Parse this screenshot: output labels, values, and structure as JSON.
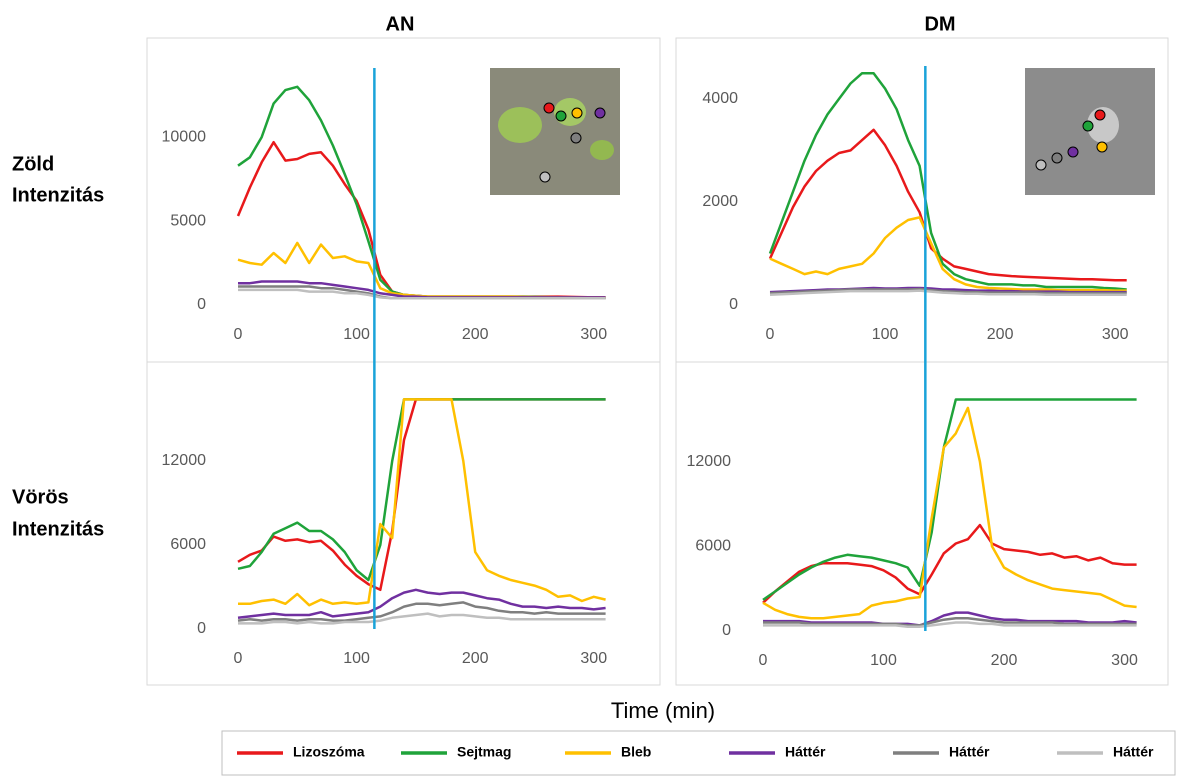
{
  "column_titles": [
    "AN",
    "DM"
  ],
  "row_labels": [
    [
      "Zöld",
      "Intenzitás"
    ],
    [
      "Vörös",
      "Intenzitás"
    ]
  ],
  "x_label": "Time (min)",
  "chart_data": [
    {
      "type": "line",
      "xlim": [
        0,
        312
      ],
      "ylim": [
        0,
        14000
      ],
      "xticks": [
        0,
        100,
        200,
        300
      ],
      "yticks": [
        0,
        5000,
        10000
      ],
      "vline": 115,
      "vline_color": "#1aa3d9",
      "x": [
        0,
        10,
        20,
        30,
        40,
        50,
        60,
        70,
        80,
        90,
        100,
        110,
        120,
        130,
        140,
        150,
        160,
        170,
        180,
        190,
        200,
        210,
        220,
        230,
        240,
        250,
        260,
        270,
        280,
        290,
        300,
        310
      ],
      "series": [
        {
          "name": "Lizoszóma",
          "color": "#e8191b",
          "values": [
            5300,
            7000,
            8500,
            9700,
            8600,
            8700,
            9000,
            9100,
            8300,
            7200,
            6200,
            4500,
            1800,
            800,
            600,
            550,
            500,
            500,
            500,
            500,
            500,
            500,
            500,
            500,
            500,
            500,
            500,
            500,
            480,
            470,
            450,
            450
          ]
        },
        {
          "name": "Sejtmag",
          "color": "#1fa33a",
          "values": [
            8300,
            8800,
            10000,
            12000,
            12800,
            13000,
            12200,
            11000,
            9500,
            7800,
            6000,
            3800,
            1500,
            800,
            600,
            550,
            500,
            500,
            500,
            500,
            500,
            500,
            500,
            500,
            500,
            480,
            470,
            450,
            450,
            430,
            420,
            400
          ]
        },
        {
          "name": "Bleb",
          "color": "#ffc000",
          "values": [
            2700,
            2500,
            2400,
            3100,
            2500,
            3700,
            2500,
            3600,
            2800,
            2900,
            2600,
            2500,
            1000,
            700,
            600,
            550,
            500,
            500,
            500,
            500,
            500,
            500,
            500,
            500,
            480,
            470,
            470,
            460,
            460,
            450,
            450,
            450
          ]
        },
        {
          "name": "Háttér",
          "color": "#7030a0",
          "values": [
            1300,
            1300,
            1400,
            1400,
            1400,
            1400,
            1300,
            1300,
            1200,
            1100,
            1000,
            900,
            700,
            600,
            500,
            500,
            450,
            450,
            450,
            450,
            450,
            450,
            450,
            450,
            450,
            450,
            450,
            450,
            450,
            450,
            450,
            450
          ]
        },
        {
          "name": "Háttér",
          "color": "#7f7f7f",
          "values": [
            1100,
            1100,
            1100,
            1100,
            1100,
            1100,
            1100,
            1000,
            1000,
            900,
            800,
            700,
            500,
            400,
            400,
            400,
            400,
            400,
            400,
            400,
            400,
            400,
            400,
            400,
            400,
            400,
            400,
            400,
            400,
            400,
            400,
            400
          ]
        },
        {
          "name": "Háttér",
          "color": "#bfbfbf",
          "values": [
            900,
            900,
            900,
            900,
            900,
            900,
            800,
            800,
            800,
            700,
            700,
            600,
            450,
            400,
            400,
            400,
            400,
            400,
            400,
            400,
            400,
            400,
            400,
            400,
            400,
            400,
            400,
            400,
            400,
            400,
            400,
            400
          ]
        }
      ]
    },
    {
      "type": "line",
      "xlim": [
        0,
        312
      ],
      "ylim": [
        0,
        4600
      ],
      "xticks": [
        0,
        100,
        200,
        300
      ],
      "yticks": [
        0,
        2000,
        4000
      ],
      "vline": 135,
      "vline_color": "#1aa3d9",
      "x": [
        0,
        10,
        20,
        30,
        40,
        50,
        60,
        70,
        80,
        90,
        100,
        110,
        120,
        130,
        140,
        150,
        160,
        170,
        180,
        190,
        200,
        210,
        220,
        230,
        240,
        250,
        260,
        270,
        280,
        290,
        300,
        310
      ],
      "series": [
        {
          "name": "Lizoszóma",
          "color": "#e8191b",
          "values": [
            900,
            1400,
            1900,
            2300,
            2600,
            2800,
            2950,
            3000,
            3200,
            3400,
            3100,
            2700,
            2200,
            1800,
            1100,
            900,
            750,
            700,
            650,
            600,
            580,
            560,
            550,
            540,
            530,
            520,
            510,
            500,
            500,
            490,
            480,
            480
          ]
        },
        {
          "name": "Sejtmag",
          "color": "#1fa33a",
          "values": [
            1000,
            1600,
            2200,
            2800,
            3300,
            3700,
            4000,
            4300,
            4500,
            4500,
            4200,
            3800,
            3200,
            2700,
            1400,
            800,
            600,
            500,
            450,
            400,
            400,
            400,
            380,
            380,
            350,
            350,
            350,
            350,
            350,
            330,
            320,
            300
          ]
        },
        {
          "name": "Bleb",
          "color": "#ffc000",
          "values": [
            900,
            800,
            700,
            600,
            650,
            600,
            700,
            750,
            800,
            1000,
            1300,
            1500,
            1650,
            1700,
            1200,
            700,
            500,
            400,
            350,
            330,
            320,
            310,
            300,
            300,
            300,
            290,
            290,
            290,
            290,
            290,
            280,
            280
          ]
        },
        {
          "name": "Háttér",
          "color": "#7030a0",
          "values": [
            250,
            260,
            270,
            280,
            290,
            300,
            300,
            310,
            320,
            330,
            320,
            320,
            330,
            330,
            320,
            300,
            300,
            290,
            280,
            280,
            270,
            270,
            260,
            260,
            260,
            260,
            250,
            250,
            250,
            250,
            250,
            250
          ]
        },
        {
          "name": "Háttér",
          "color": "#7f7f7f",
          "values": [
            230,
            240,
            250,
            260,
            270,
            280,
            290,
            300,
            300,
            300,
            300,
            300,
            300,
            310,
            290,
            270,
            260,
            250,
            250,
            240,
            240,
            240,
            240,
            240,
            230,
            230,
            230,
            230,
            230,
            230,
            230,
            230
          ]
        },
        {
          "name": "Háttér",
          "color": "#bfbfbf",
          "values": [
            200,
            210,
            220,
            230,
            240,
            250,
            260,
            270,
            270,
            270,
            270,
            270,
            270,
            280,
            260,
            240,
            230,
            220,
            220,
            210,
            210,
            210,
            210,
            210,
            200,
            200,
            200,
            200,
            200,
            200,
            200,
            200
          ]
        }
      ]
    },
    {
      "type": "line",
      "xlim": [
        0,
        312
      ],
      "ylim": [
        0,
        17000
      ],
      "xticks": [
        0,
        100,
        200,
        300
      ],
      "yticks": [
        0,
        6000,
        12000
      ],
      "x": [
        0,
        10,
        20,
        30,
        40,
        50,
        60,
        70,
        80,
        90,
        100,
        110,
        120,
        130,
        140,
        150,
        160,
        170,
        180,
        190,
        200,
        210,
        220,
        230,
        240,
        250,
        260,
        270,
        280,
        290,
        300,
        310
      ],
      "series": [
        {
          "name": "Lizoszóma",
          "color": "#e8191b",
          "values": [
            4800,
            5300,
            5600,
            6600,
            6300,
            6400,
            6200,
            6300,
            5600,
            4600,
            3800,
            3200,
            2800,
            7000,
            13500,
            16400,
            16400,
            16400,
            16400,
            16400,
            16400,
            16400,
            16400,
            16400,
            16400,
            16400,
            16400,
            16400,
            16400,
            16400,
            16400,
            16400
          ]
        },
        {
          "name": "Sejtmag",
          "color": "#1fa33a",
          "values": [
            4300,
            4500,
            5500,
            6800,
            7200,
            7600,
            7000,
            7000,
            6400,
            5500,
            4200,
            3500,
            6000,
            12000,
            16400,
            16400,
            16400,
            16400,
            16400,
            16400,
            16400,
            16400,
            16400,
            16400,
            16400,
            16400,
            16400,
            16400,
            16400,
            16400,
            16400,
            16400
          ]
        },
        {
          "name": "Bleb",
          "color": "#ffc000",
          "values": [
            1800,
            1800,
            2000,
            2100,
            1800,
            2500,
            1700,
            2100,
            1800,
            1900,
            1800,
            1900,
            7500,
            6500,
            16400,
            16400,
            16400,
            16400,
            16400,
            12000,
            5500,
            4200,
            3800,
            3500,
            3300,
            3100,
            2800,
            2300,
            2400,
            2000,
            2300,
            2100
          ]
        },
        {
          "name": "Háttér",
          "color": "#7030a0",
          "values": [
            800,
            900,
            1000,
            1100,
            1000,
            1000,
            1000,
            1200,
            900,
            1000,
            1100,
            1200,
            1600,
            2200,
            2600,
            2800,
            2600,
            2500,
            2600,
            2600,
            2400,
            2200,
            2100,
            1800,
            1600,
            1600,
            1500,
            1600,
            1500,
            1500,
            1400,
            1500
          ]
        },
        {
          "name": "Háttér",
          "color": "#7f7f7f",
          "values": [
            600,
            700,
            600,
            700,
            700,
            600,
            700,
            700,
            600,
            600,
            700,
            800,
            900,
            1200,
            1600,
            1800,
            1800,
            1700,
            1800,
            1900,
            1600,
            1500,
            1300,
            1200,
            1200,
            1100,
            1200,
            1100,
            1100,
            1100,
            1100,
            1100
          ]
        },
        {
          "name": "Háttér",
          "color": "#bfbfbf",
          "values": [
            400,
            400,
            400,
            500,
            500,
            400,
            500,
            400,
            400,
            500,
            500,
            500,
            600,
            800,
            900,
            1000,
            1100,
            900,
            1000,
            1000,
            900,
            800,
            800,
            700,
            700,
            700,
            700,
            700,
            700,
            700,
            700,
            700
          ]
        }
      ]
    },
    {
      "type": "line",
      "xlim": [
        0,
        312
      ],
      "ylim": [
        0,
        17000
      ],
      "xticks": [
        0,
        100,
        200,
        300
      ],
      "yticks": [
        0,
        6000,
        12000
      ],
      "x": [
        0,
        10,
        20,
        30,
        40,
        50,
        60,
        70,
        80,
        90,
        100,
        110,
        120,
        130,
        140,
        150,
        160,
        170,
        180,
        190,
        200,
        210,
        220,
        230,
        240,
        250,
        260,
        270,
        280,
        290,
        300,
        310
      ],
      "series": [
        {
          "name": "Lizoszóma",
          "color": "#e8191b",
          "values": [
            2000,
            2800,
            3500,
            4200,
            4600,
            4800,
            4800,
            4800,
            4700,
            4600,
            4300,
            3800,
            3000,
            2600,
            4000,
            5500,
            6200,
            6500,
            7500,
            6200,
            5800,
            5700,
            5600,
            5400,
            5500,
            5200,
            5300,
            5000,
            5200,
            4800,
            4700,
            4700
          ]
        },
        {
          "name": "Sejtmag",
          "color": "#1fa33a",
          "values": [
            2200,
            2800,
            3400,
            4000,
            4500,
            4900,
            5200,
            5400,
            5300,
            5200,
            5000,
            4800,
            4500,
            3200,
            7000,
            13000,
            16400,
            16400,
            16400,
            16400,
            16400,
            16400,
            16400,
            16400,
            16400,
            16400,
            16400,
            16400,
            16400,
            16400,
            16400,
            16400
          ]
        },
        {
          "name": "Bleb",
          "color": "#ffc000",
          "values": [
            2000,
            1500,
            1200,
            1000,
            900,
            900,
            1000,
            1100,
            1200,
            1800,
            2000,
            2100,
            2300,
            2400,
            8000,
            13000,
            14000,
            15800,
            12000,
            6000,
            4500,
            4000,
            3600,
            3300,
            3000,
            2900,
            2800,
            2700,
            2600,
            2200,
            1800,
            1700
          ]
        },
        {
          "name": "Háttér",
          "color": "#7030a0",
          "values": [
            700,
            700,
            700,
            700,
            600,
            600,
            600,
            600,
            600,
            600,
            500,
            500,
            500,
            400,
            700,
            1100,
            1300,
            1300,
            1100,
            900,
            800,
            800,
            700,
            700,
            700,
            700,
            700,
            600,
            600,
            600,
            700,
            600
          ]
        },
        {
          "name": "Háttér",
          "color": "#7f7f7f",
          "values": [
            600,
            600,
            600,
            600,
            500,
            500,
            500,
            500,
            500,
            500,
            500,
            500,
            400,
            400,
            600,
            800,
            900,
            900,
            800,
            700,
            600,
            600,
            600,
            600,
            600,
            500,
            500,
            500,
            500,
            500,
            500,
            500
          ]
        },
        {
          "name": "Háttér",
          "color": "#bfbfbf",
          "values": [
            400,
            400,
            400,
            400,
            400,
            400,
            400,
            400,
            400,
            400,
            400,
            400,
            300,
            300,
            400,
            500,
            600,
            600,
            500,
            500,
            400,
            400,
            400,
            400,
            400,
            400,
            400,
            400,
            400,
            400,
            400,
            400
          ]
        }
      ]
    }
  ]
}
